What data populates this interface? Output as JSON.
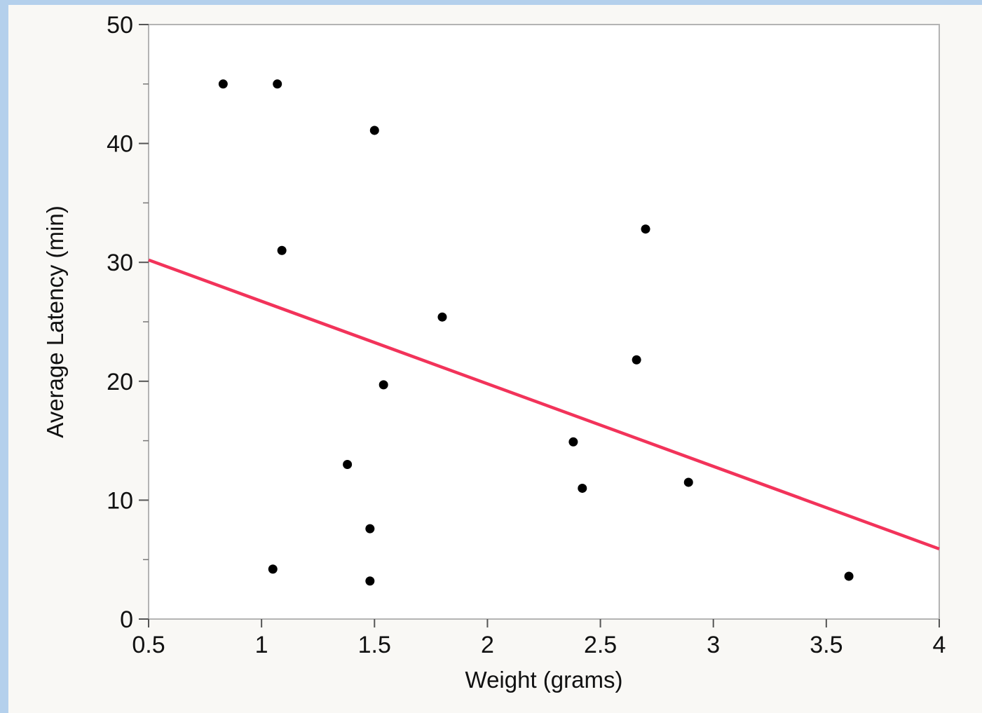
{
  "chart_data": {
    "type": "scatter",
    "xlabel": "Weight (grams)",
    "ylabel": "Average Latency (min)",
    "xlim": [
      0.5,
      4
    ],
    "ylim": [
      0,
      50
    ],
    "x_ticks": [
      "0.5",
      "1",
      "1.5",
      "2",
      "2.5",
      "3",
      "3.5",
      "4"
    ],
    "y_ticks": [
      "0",
      "10",
      "20",
      "30",
      "40",
      "50"
    ],
    "grid": false,
    "points": [
      {
        "x": 0.83,
        "y": 45.0
      },
      {
        "x": 1.07,
        "y": 45.0
      },
      {
        "x": 1.5,
        "y": 41.1
      },
      {
        "x": 1.09,
        "y": 31.0
      },
      {
        "x": 2.7,
        "y": 32.8
      },
      {
        "x": 1.8,
        "y": 25.4
      },
      {
        "x": 2.66,
        "y": 21.8
      },
      {
        "x": 1.54,
        "y": 19.7
      },
      {
        "x": 2.38,
        "y": 14.9
      },
      {
        "x": 1.38,
        "y": 13.0
      },
      {
        "x": 2.42,
        "y": 11.0
      },
      {
        "x": 2.89,
        "y": 11.5
      },
      {
        "x": 1.48,
        "y": 7.6
      },
      {
        "x": 1.05,
        "y": 4.2
      },
      {
        "x": 1.48,
        "y": 3.2
      },
      {
        "x": 3.6,
        "y": 3.6
      }
    ],
    "fit_line": {
      "x": [
        0.5,
        4
      ],
      "y": [
        30.2,
        5.9
      ],
      "color": "#f2335a"
    },
    "point_color": "#000000"
  }
}
